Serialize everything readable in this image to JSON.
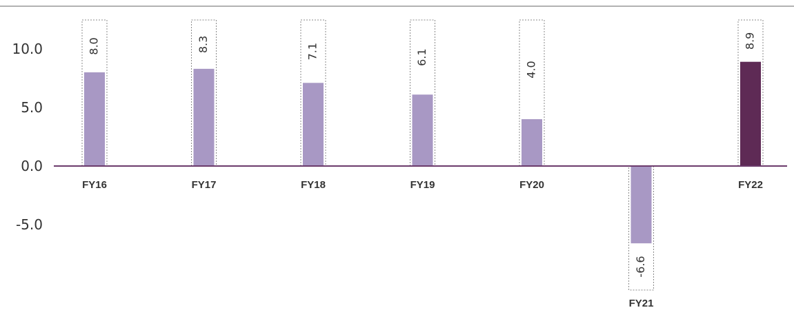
{
  "chart_data": {
    "type": "bar",
    "categories": [
      "FY16",
      "FY17",
      "FY18",
      "FY19",
      "FY20",
      "FY21",
      "FY22"
    ],
    "values": [
      8.0,
      8.3,
      7.1,
      6.1,
      4.0,
      -6.6,
      8.9
    ],
    "value_labels": [
      "8.0",
      "8.3",
      "7.1",
      "6.1",
      "4.0",
      "-6.6",
      "8.9"
    ],
    "y_ticks": [
      {
        "value": 10,
        "label": "10.0"
      },
      {
        "value": 5,
        "label": "5.0"
      },
      {
        "value": 0,
        "label": "0.0"
      },
      {
        "value": -5,
        "label": "-5.0"
      }
    ],
    "ylim": [
      -10,
      12.5
    ],
    "grid": false,
    "legend": "none",
    "colors": {
      "bar": "#a898c4",
      "highlight_bar": "#5e2a55",
      "axis": "#6b3a6b",
      "label_box": "#888888",
      "top_rule": "#999999"
    },
    "highlight_index": 6
  }
}
